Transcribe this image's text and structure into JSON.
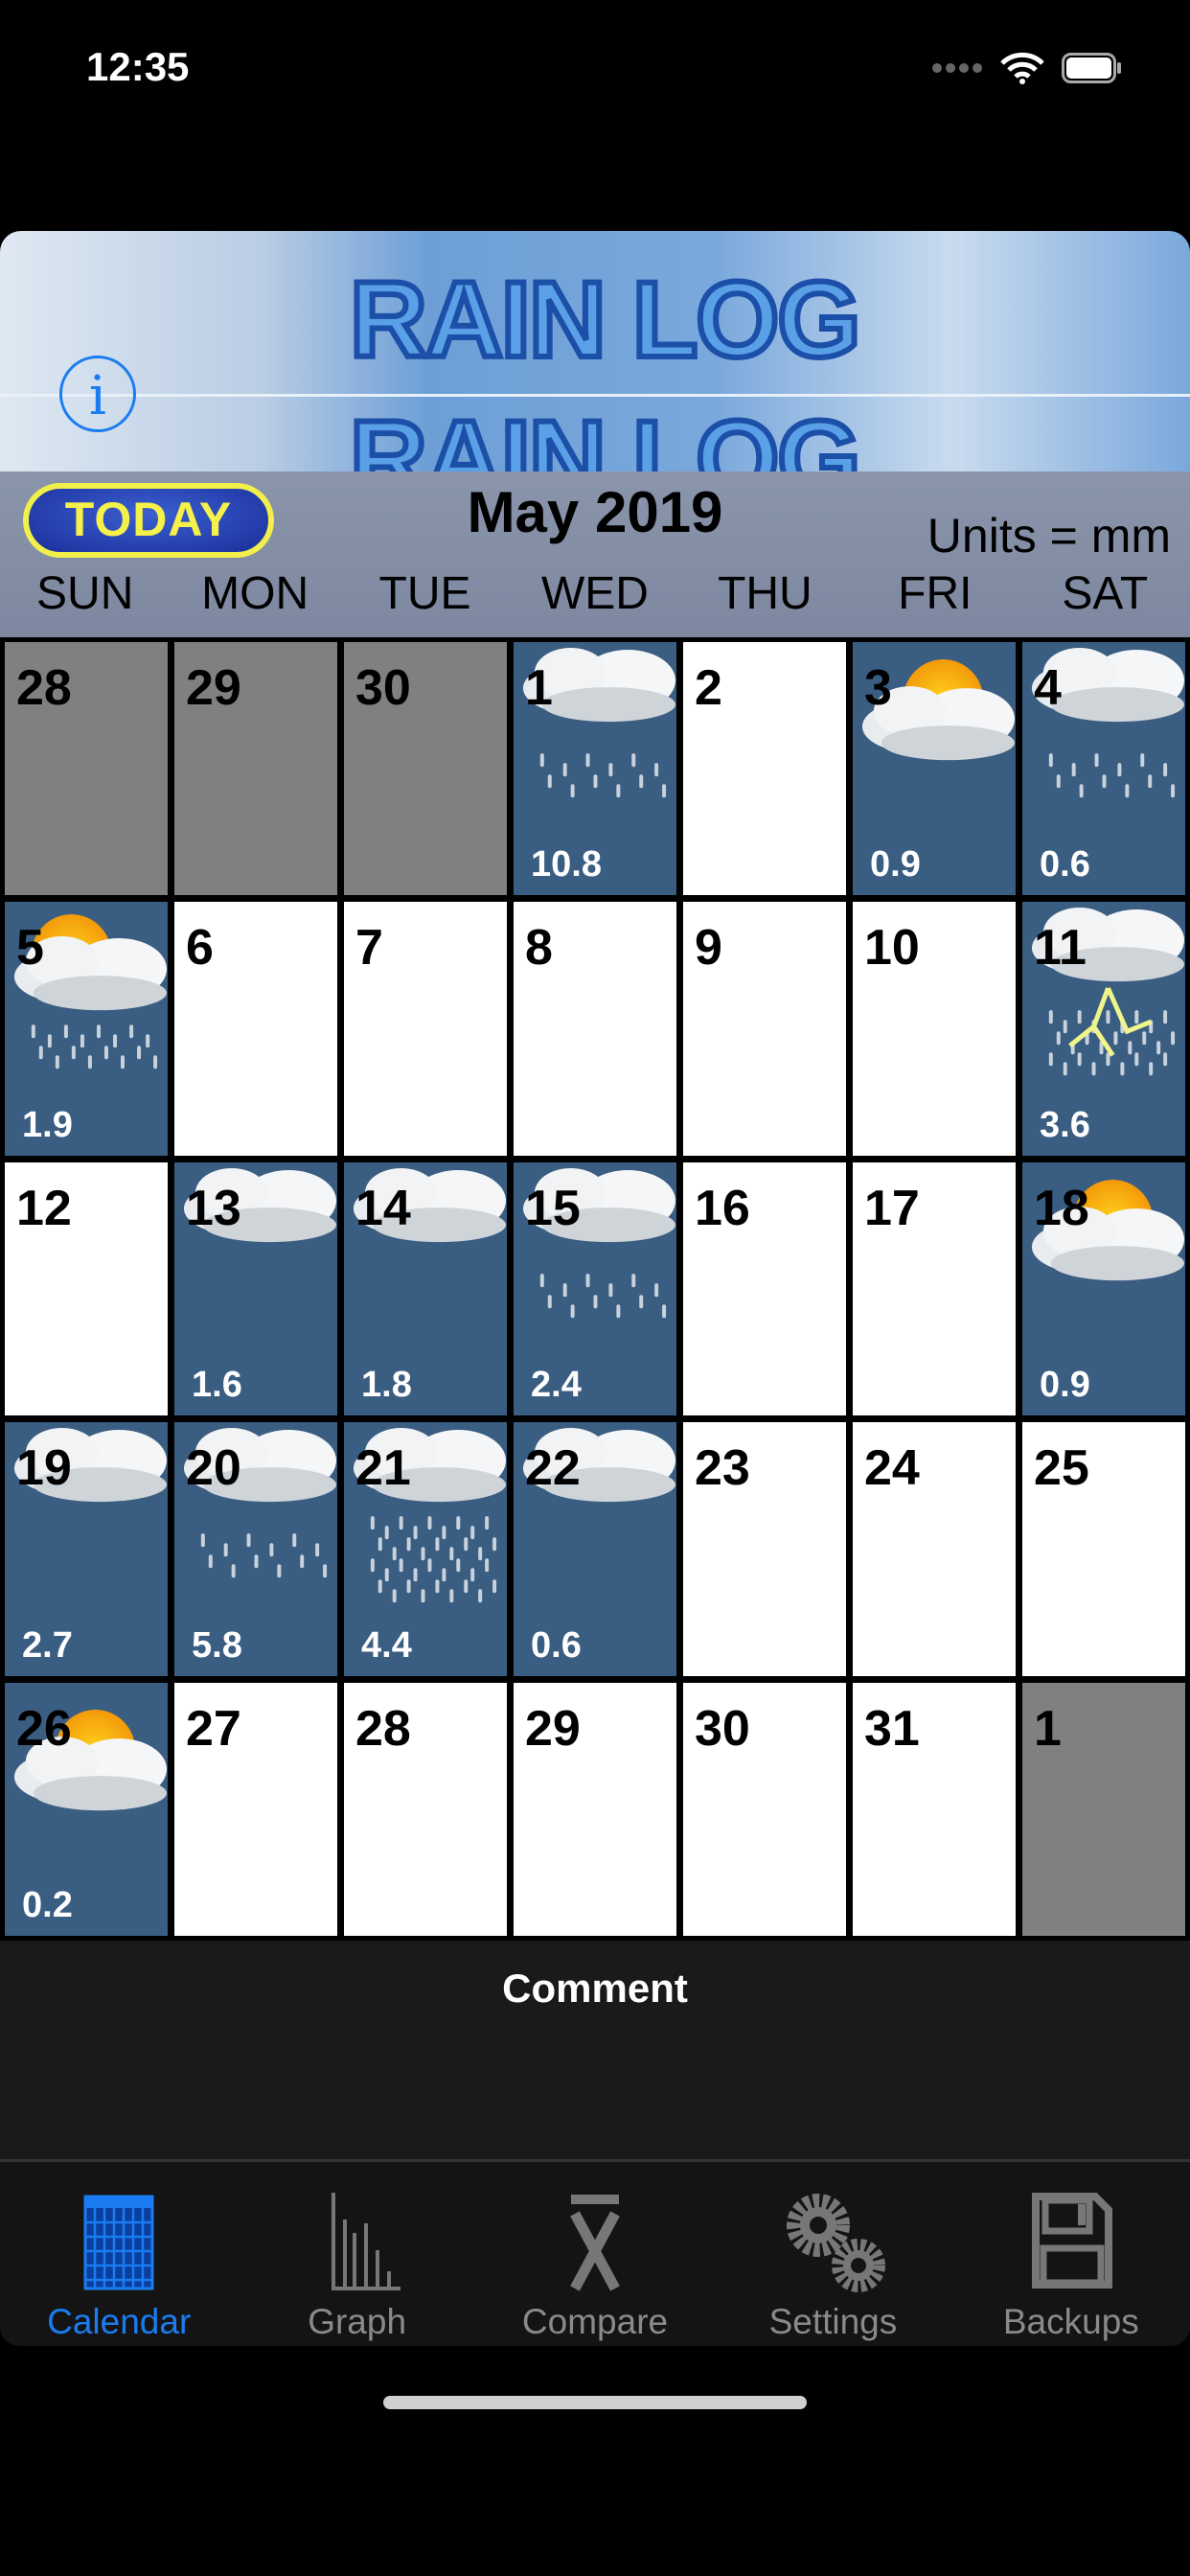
{
  "status_bar": {
    "time": "12:35"
  },
  "banner": {
    "title": "RAIN LOG",
    "info_label": "i"
  },
  "header": {
    "today_button": "TODAY",
    "month_title": "May 2019",
    "units": "Units = mm",
    "weekdays": [
      "SUN",
      "MON",
      "TUE",
      "WED",
      "THU",
      "FRI",
      "SAT"
    ]
  },
  "colors": {
    "rain_day": "#3a5d82",
    "other_month": "#808080",
    "dry_day": "#ffffff",
    "accent": "#1a7cf0"
  },
  "calendar": {
    "weeks": [
      [
        {
          "day": "28",
          "kind": "grey"
        },
        {
          "day": "29",
          "kind": "grey"
        },
        {
          "day": "30",
          "kind": "grey"
        },
        {
          "day": "1",
          "kind": "rain",
          "icon": "cloud-rain",
          "amount": "10.8"
        },
        {
          "day": "2",
          "kind": "white"
        },
        {
          "day": "3",
          "kind": "rain",
          "icon": "sun-cloud",
          "amount": "0.9"
        },
        {
          "day": "4",
          "kind": "rain",
          "icon": "cloud-rain",
          "amount": "0.6"
        }
      ],
      [
        {
          "day": "5",
          "kind": "rain",
          "icon": "sun-cloud-rain",
          "amount": "1.9"
        },
        {
          "day": "6",
          "kind": "white"
        },
        {
          "day": "7",
          "kind": "white"
        },
        {
          "day": "8",
          "kind": "white"
        },
        {
          "day": "9",
          "kind": "white"
        },
        {
          "day": "10",
          "kind": "white"
        },
        {
          "day": "11",
          "kind": "rain",
          "icon": "thunderstorm",
          "amount": "3.6"
        }
      ],
      [
        {
          "day": "12",
          "kind": "white"
        },
        {
          "day": "13",
          "kind": "rain",
          "icon": "cloud",
          "amount": "1.6"
        },
        {
          "day": "14",
          "kind": "rain",
          "icon": "cloud",
          "amount": "1.8"
        },
        {
          "day": "15",
          "kind": "rain",
          "icon": "cloud-rain",
          "amount": "2.4"
        },
        {
          "day": "16",
          "kind": "white"
        },
        {
          "day": "17",
          "kind": "white"
        },
        {
          "day": "18",
          "kind": "rain",
          "icon": "sun-cloud",
          "amount": "0.9"
        }
      ],
      [
        {
          "day": "19",
          "kind": "rain",
          "icon": "cloud",
          "amount": "2.7"
        },
        {
          "day": "20",
          "kind": "rain",
          "icon": "cloud-rain",
          "amount": "5.8"
        },
        {
          "day": "21",
          "kind": "rain",
          "icon": "cloud-heavy-rain",
          "amount": "4.4"
        },
        {
          "day": "22",
          "kind": "rain",
          "icon": "cloud",
          "amount": "0.6"
        },
        {
          "day": "23",
          "kind": "white"
        },
        {
          "day": "24",
          "kind": "white"
        },
        {
          "day": "25",
          "kind": "white"
        }
      ],
      [
        {
          "day": "26",
          "kind": "rain",
          "icon": "sun-cloud-low",
          "amount": "0.2"
        },
        {
          "day": "27",
          "kind": "white"
        },
        {
          "day": "28",
          "kind": "white"
        },
        {
          "day": "29",
          "kind": "white"
        },
        {
          "day": "30",
          "kind": "white"
        },
        {
          "day": "31",
          "kind": "white"
        },
        {
          "day": "1",
          "kind": "grey"
        }
      ]
    ]
  },
  "comment": {
    "label": "Comment"
  },
  "tabs": [
    {
      "label": "Calendar",
      "icon": "calendar-icon",
      "active": true
    },
    {
      "label": "Graph",
      "icon": "bar-graph-icon"
    },
    {
      "label": "Compare",
      "icon": "x-bar-icon"
    },
    {
      "label": "Settings",
      "icon": "gears-icon"
    },
    {
      "label": "Backups",
      "icon": "floppy-disk-icon"
    }
  ]
}
